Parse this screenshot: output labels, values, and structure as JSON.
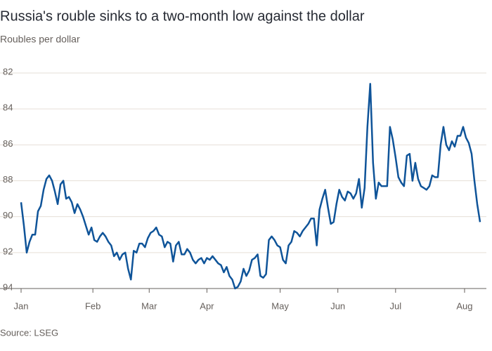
{
  "chart_data": {
    "type": "line",
    "title": "Russia's rouble sinks to a two-month low against the dollar",
    "subtitle": "Roubles per dollar",
    "source": "Source: LSEG",
    "ylim": [
      82,
      94
    ],
    "y_inverted": true,
    "yticks": [
      82,
      84,
      86,
      88,
      90,
      92,
      94
    ],
    "grid": true,
    "xticks": [
      {
        "value": 0,
        "label": "Jan"
      },
      {
        "value": 25.5,
        "label": "Feb"
      },
      {
        "value": 45.5,
        "label": "Mar"
      },
      {
        "value": 66,
        "label": "Apr"
      },
      {
        "value": 92,
        "label": "May"
      },
      {
        "value": 112.5,
        "label": "Jun"
      },
      {
        "value": 133,
        "label": "Jul"
      },
      {
        "value": 157.5,
        "label": "Aug"
      }
    ],
    "series": [
      {
        "color": "#0f5499",
        "values": [
          89.2,
          90.5,
          92.0,
          91.4,
          91.0,
          91.0,
          89.7,
          89.4,
          88.5,
          87.9,
          87.7,
          88.0,
          88.6,
          89.3,
          88.2,
          88.0,
          89.0,
          88.9,
          89.2,
          89.8,
          89.3,
          89.6,
          90.0,
          90.5,
          91.0,
          90.6,
          91.3,
          91.4,
          91.1,
          90.9,
          91.1,
          91.4,
          91.6,
          92.2,
          92.0,
          92.4,
          92.1,
          92.0,
          92.9,
          93.5,
          91.9,
          92.0,
          91.5,
          91.5,
          91.7,
          91.2,
          90.9,
          90.8,
          90.6,
          91.0,
          91.1,
          91.7,
          91.4,
          91.5,
          92.5,
          91.6,
          91.4,
          92.1,
          92.1,
          91.8,
          92.0,
          92.4,
          92.6,
          92.4,
          92.3,
          92.6,
          92.3,
          92.4,
          92.2,
          92.4,
          92.6,
          92.7,
          93.1,
          92.8,
          93.3,
          93.5,
          94.0,
          93.9,
          93.6,
          92.9,
          93.3,
          93.0,
          92.4,
          92.3,
          92.1,
          93.3,
          93.4,
          93.2,
          91.3,
          91.1,
          91.3,
          91.6,
          91.7,
          92.4,
          92.6,
          91.6,
          91.4,
          90.8,
          90.9,
          91.1,
          90.8,
          90.6,
          90.4,
          90.1,
          90.1,
          91.6,
          89.6,
          89.0,
          88.5,
          89.5,
          90.4,
          90.3,
          89.3,
          88.5,
          88.9,
          89.1,
          88.6,
          88.7,
          89.0,
          88.7,
          87.9,
          89.5,
          88.4,
          85.0,
          82.6,
          87.0,
          89.0,
          88.1,
          88.3,
          88.3,
          88.3,
          85.0,
          85.7,
          86.7,
          87.8,
          88.1,
          88.3,
          86.6,
          86.5,
          88.0,
          87.0,
          87.9,
          88.3,
          88.4,
          88.5,
          88.3,
          87.7,
          87.8,
          87.8,
          86.0,
          85.0,
          86.0,
          86.3,
          85.8,
          86.1,
          85.5,
          85.5,
          85.0,
          85.6,
          85.9,
          86.5,
          88.0,
          89.3,
          90.3
        ]
      }
    ]
  }
}
